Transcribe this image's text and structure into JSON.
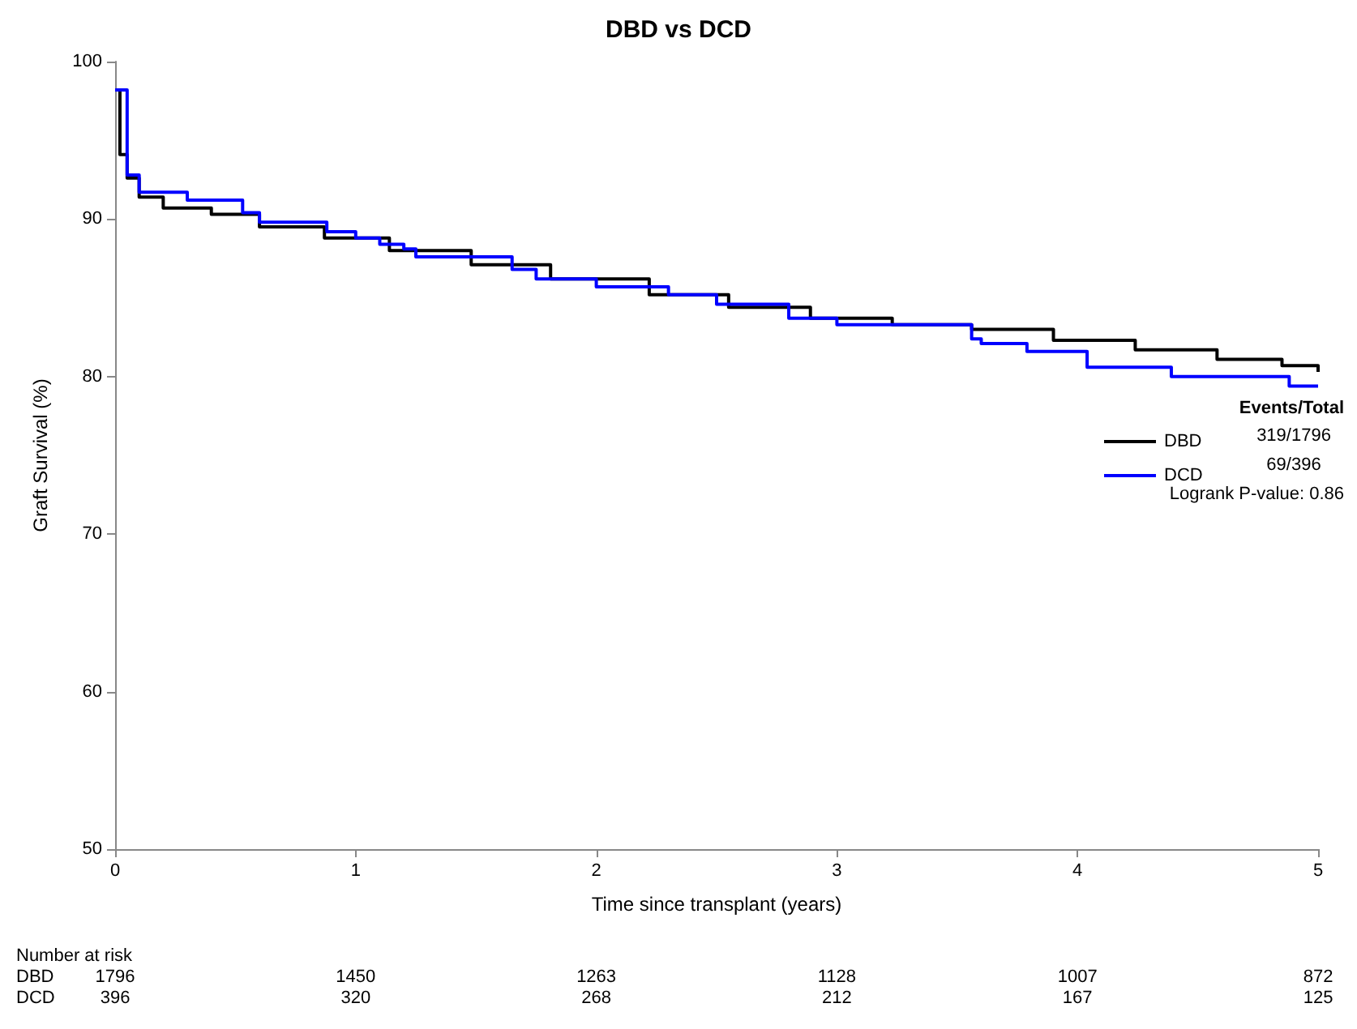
{
  "chart_data": {
    "type": "step",
    "title": "DBD vs DCD",
    "xlabel": "Time since transplant (years)",
    "ylabel": "Graft Survival (%)",
    "xlim": [
      0,
      5
    ],
    "xticks": [
      0,
      1,
      2,
      3,
      4,
      5
    ],
    "ylim": [
      50,
      100
    ],
    "yticks": [
      50,
      60,
      70,
      80,
      90,
      100
    ],
    "grid": false,
    "legend": "right",
    "marker": "none",
    "line_style": "solid",
    "series": [
      {
        "name": "DBD",
        "color": "#000000",
        "x": [
          0,
          0.02,
          0.05,
          0.1,
          0.2,
          0.4,
          0.6,
          0.87,
          1.14,
          1.48,
          1.81,
          2.22,
          2.55,
          2.89,
          3.23,
          3.56,
          3.9,
          4.24,
          4.58,
          4.85,
          5
        ],
        "values": [
          98.2,
          94.1,
          92.6,
          91.4,
          90.7,
          90.3,
          89.5,
          88.8,
          88,
          87.1,
          86.2,
          85.2,
          84.4,
          83.7,
          83.3,
          83,
          82.3,
          81.7,
          81.1,
          80.7,
          80.3
        ]
      },
      {
        "name": "DCD",
        "color": "#0000ff",
        "x": [
          0,
          0.05,
          0.1,
          0.3,
          0.5,
          0.53,
          0.6,
          0.88,
          1,
          1.1,
          1.2,
          1.25,
          1.65,
          1.75,
          2,
          2.3,
          2.5,
          2.8,
          3,
          3.56,
          3.6,
          3.79,
          4.04,
          4.39,
          4.88,
          5
        ],
        "values": [
          98.2,
          92.8,
          91.7,
          91.2,
          91.2,
          90.4,
          89.8,
          89.2,
          88.8,
          88.4,
          88.1,
          87.6,
          86.8,
          86.2,
          85.7,
          85.2,
          84.6,
          83.7,
          83.3,
          82.4,
          82.1,
          81.6,
          80.6,
          80,
          79.4,
          79.4
        ]
      }
    ],
    "annotations": [
      "Events/Total",
      "319/1796",
      "69/396",
      "Logrank P-value: 0.86",
      "Number at risk",
      "DBD",
      "1796",
      "1450",
      "1263",
      "1128",
      "1007",
      "872",
      "DCD",
      "396",
      "320",
      "268",
      "212",
      "167",
      "125"
    ]
  }
}
